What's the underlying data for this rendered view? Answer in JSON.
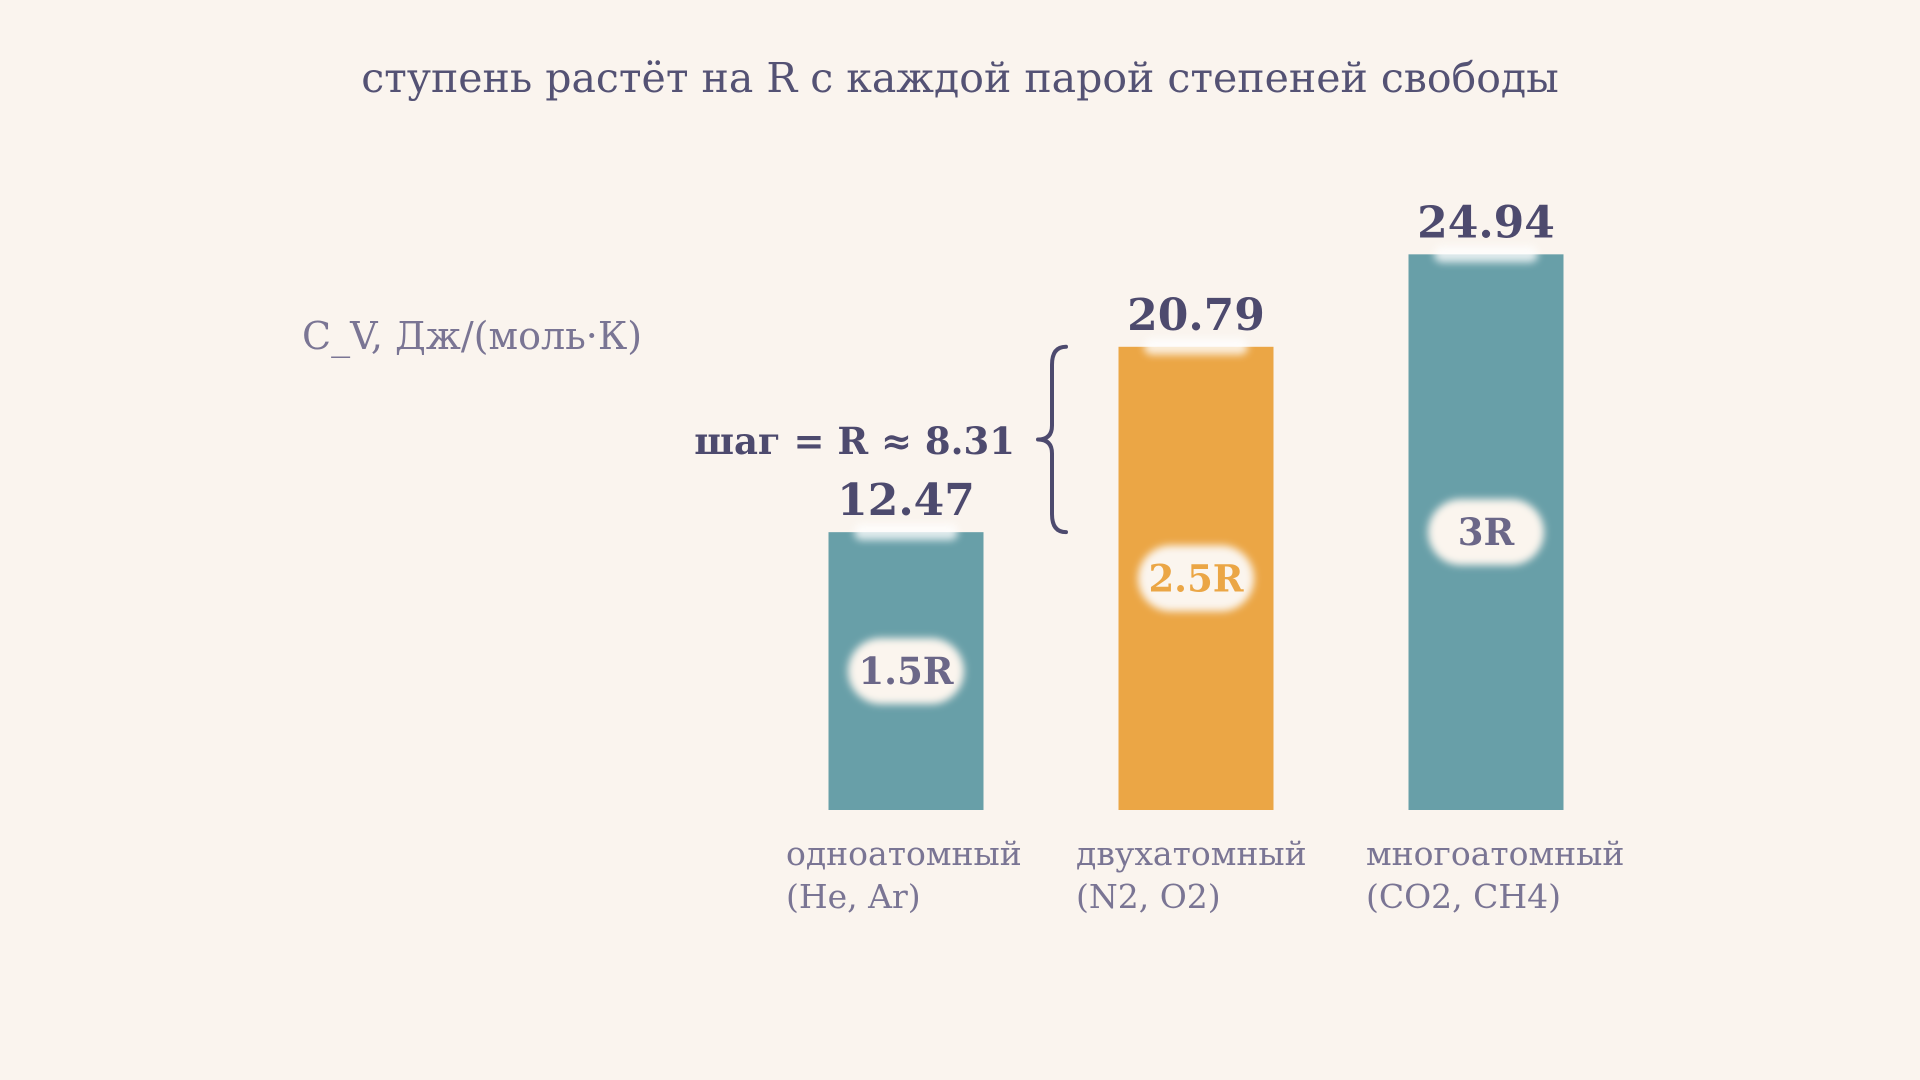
{
  "chart_data": {
    "type": "bar",
    "title": "ступень растёт на R с каждой парой степеней свободы",
    "ylabel": "C_V, Дж/(моль·К)",
    "xlabel": "",
    "ylim": [
      0,
      28
    ],
    "grid": false,
    "legend": "none",
    "categories": [
      [
        "одноатомный",
        "(He, Ar)"
      ],
      [
        "двухатомный",
        "(N2, O2)"
      ],
      [
        "многоатомный",
        "(CO2, CH4)"
      ]
    ],
    "values": [
      12.47,
      20.79,
      24.94
    ],
    "value_labels": [
      "12.47",
      "20.79",
      "24.94"
    ],
    "inner_labels": [
      "1.5R",
      "2.5R",
      "3R"
    ],
    "bar_colors": [
      "#689fa8",
      "#eba645",
      "#689fa8"
    ],
    "inner_label_colors": [
      "#6b6788",
      "#eba645",
      "#6b6788"
    ],
    "annotation": {
      "text": "шаг = R  ≈  8.31",
      "from_value": 12.47,
      "to_value": 20.79
    }
  },
  "colors": {
    "background": "#faf4ee",
    "text_dark": "#4d4a6e",
    "text_muted": "#7a7594",
    "teal": "#689fa8",
    "orange": "#eba645"
  }
}
